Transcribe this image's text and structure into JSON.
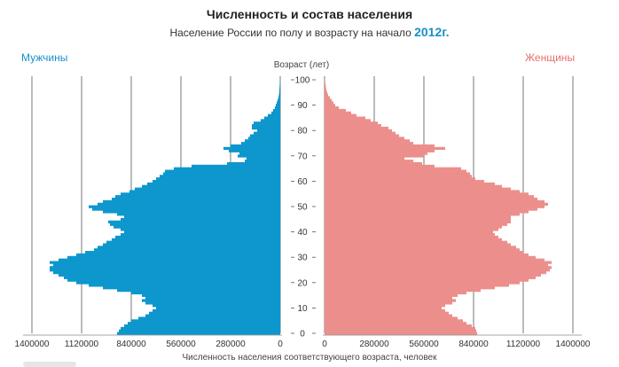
{
  "header": {
    "title": "Численность и состав населения",
    "subtitle_text": "Население России по полу и возрасту на начало",
    "subtitle_year": "2012г."
  },
  "colors": {
    "male": "#0d97cd",
    "female": "#ec8f8c",
    "accent": "#1a8fc4",
    "female_label": "#e5706e",
    "grid": "#555555"
  },
  "chart_data": {
    "type": "bar",
    "orientation": "horizontal",
    "title": "Численность и состав населения",
    "subtitle": "Население России по полу и возрасту на начало 2012г.",
    "left_label": "Мужчины",
    "right_label": "Женщины",
    "age_axis_label": "Возраст (лет)",
    "xlabel": "Численность населения соответствующего возраста,  человек",
    "age_ticks": [
      "0",
      "10",
      "20",
      "30",
      "40",
      "50",
      "60",
      "70",
      "80",
      "90",
      "100"
    ],
    "male_ticks": [
      "1400000",
      "1120000",
      "840000",
      "560000",
      "280000",
      "0"
    ],
    "female_ticks": [
      "0",
      "280000",
      "560000",
      "840000",
      "1120000",
      "1400000"
    ],
    "xlim": [
      0,
      1400000
    ],
    "ylim": [
      0,
      100
    ],
    "ages": [
      0,
      1,
      2,
      3,
      4,
      5,
      6,
      7,
      8,
      9,
      10,
      11,
      12,
      13,
      14,
      15,
      16,
      17,
      18,
      19,
      20,
      21,
      22,
      23,
      24,
      25,
      26,
      27,
      28,
      29,
      30,
      31,
      32,
      33,
      34,
      35,
      36,
      37,
      38,
      39,
      40,
      41,
      42,
      43,
      44,
      45,
      46,
      47,
      48,
      49,
      50,
      51,
      52,
      53,
      54,
      55,
      56,
      57,
      58,
      59,
      60,
      61,
      62,
      63,
      64,
      65,
      66,
      67,
      68,
      69,
      70,
      71,
      72,
      73,
      74,
      75,
      76,
      77,
      78,
      79,
      80,
      81,
      82,
      83,
      84,
      85,
      86,
      87,
      88,
      89,
      90,
      91,
      92,
      93,
      94,
      95,
      96,
      97,
      98,
      99,
      100
    ],
    "series": [
      {
        "name": "Мужчины",
        "values": [
          920000,
          910000,
          900000,
          880000,
          860000,
          840000,
          800000,
          760000,
          740000,
          720000,
          700000,
          720000,
          760000,
          780000,
          760000,
          780000,
          840000,
          920000,
          1000000,
          1080000,
          1150000,
          1200000,
          1220000,
          1250000,
          1280000,
          1300000,
          1300000,
          1280000,
          1300000,
          1250000,
          1200000,
          1150000,
          1100000,
          1050000,
          1030000,
          1000000,
          980000,
          950000,
          930000,
          900000,
          880000,
          900000,
          940000,
          960000,
          970000,
          900000,
          880000,
          920000,
          1000000,
          1060000,
          1080000,
          1030000,
          1000000,
          950000,
          930000,
          900000,
          850000,
          820000,
          780000,
          750000,
          720000,
          700000,
          680000,
          660000,
          650000,
          600000,
          500000,
          300000,
          200000,
          190000,
          240000,
          230000,
          290000,
          320000,
          280000,
          220000,
          200000,
          180000,
          170000,
          150000,
          130000,
          160000,
          160000,
          150000,
          110000,
          90000,
          70000,
          50000,
          40000,
          30000,
          25000,
          20000,
          15000,
          10000,
          8000,
          6000,
          5000,
          4000,
          3000,
          2000,
          1000
        ]
      },
      {
        "name": "Женщины",
        "values": [
          860000,
          855000,
          850000,
          830000,
          800000,
          780000,
          750000,
          720000,
          700000,
          680000,
          660000,
          680000,
          720000,
          740000,
          720000,
          750000,
          800000,
          880000,
          960000,
          1040000,
          1100000,
          1150000,
          1190000,
          1220000,
          1250000,
          1270000,
          1280000,
          1260000,
          1280000,
          1240000,
          1190000,
          1150000,
          1120000,
          1100000,
          1080000,
          1050000,
          1030000,
          1000000,
          980000,
          960000,
          950000,
          980000,
          1000000,
          1030000,
          1050000,
          1050000,
          1050000,
          1100000,
          1150000,
          1200000,
          1240000,
          1260000,
          1240000,
          1200000,
          1180000,
          1150000,
          1100000,
          1050000,
          1000000,
          960000,
          900000,
          850000,
          830000,
          820000,
          800000,
          770000,
          620000,
          550000,
          500000,
          450000,
          560000,
          580000,
          620000,
          680000,
          620000,
          500000,
          480000,
          450000,
          420000,
          400000,
          380000,
          360000,
          320000,
          300000,
          260000,
          230000,
          180000,
          150000,
          120000,
          80000,
          60000,
          50000,
          40000,
          30000,
          20000,
          15000,
          10000,
          8000,
          6000,
          4000,
          2000
        ]
      }
    ],
    "grid": true
  },
  "footer": {
    "scrollbar": "horizontal-scroll"
  }
}
